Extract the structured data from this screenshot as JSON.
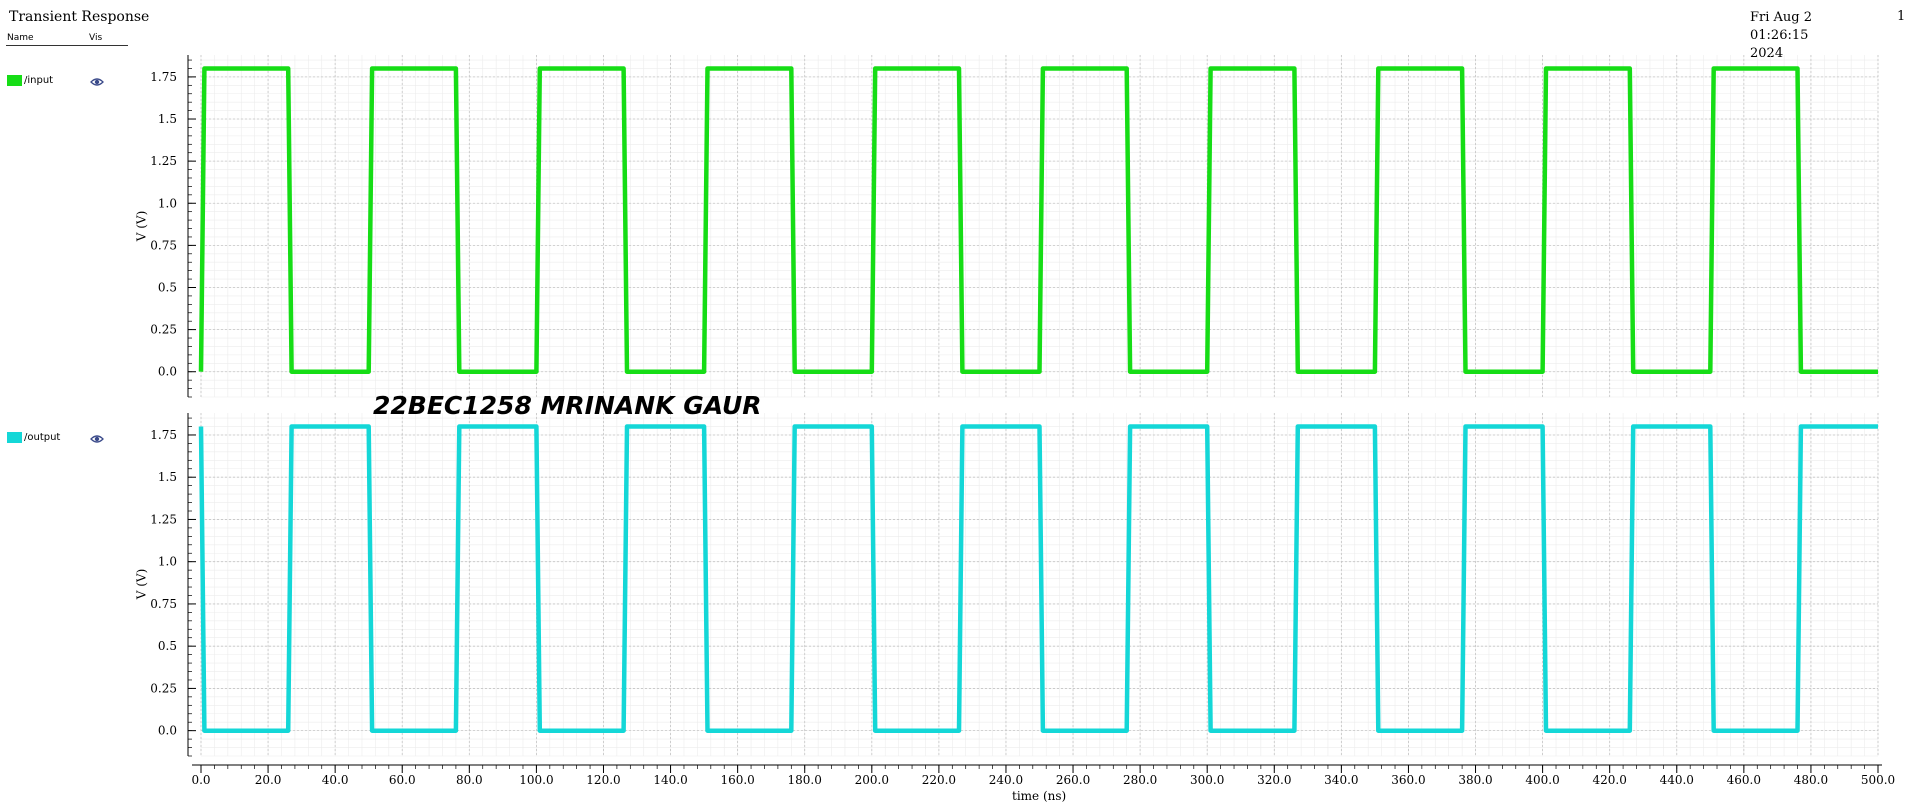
{
  "window": {
    "title": "Transient Response",
    "date_line1": "Fri Aug 2 01:26:15",
    "date_line2": "2024",
    "page_number": "1"
  },
  "legend": {
    "name_header": "Name",
    "vis_header": "Vis"
  },
  "watermark": "22BEC1258 MRINANK GAUR",
  "colors": {
    "input": "#16dd16",
    "output": "#14d7d7"
  },
  "chart_data": {
    "type": "line",
    "xlabel": "time (ns)",
    "xlim": [
      0,
      500
    ],
    "x_ticks": [
      "0.0",
      "20.0",
      "40.0",
      "60.0",
      "80.0",
      "100.0",
      "120.0",
      "140.0",
      "160.0",
      "180.0",
      "200.0",
      "220.0",
      "240.0",
      "260.0",
      "280.0",
      "300.0",
      "320.0",
      "340.0",
      "360.0",
      "380.0",
      "400.0",
      "420.0",
      "440.0",
      "460.0",
      "480.0",
      "500.0"
    ],
    "panels": [
      {
        "name": "/input",
        "ylabel": "V (V)",
        "ylim": [
          -0.15,
          1.88
        ],
        "y_ticks": [
          "0.0",
          "0.25",
          "0.5",
          "0.75",
          "1.0",
          "1.25",
          "1.5",
          "1.75"
        ],
        "series": [
          {
            "name": "/input",
            "color": "#16dd16",
            "x": [
              0,
              1,
              26,
              27,
              50,
              51,
              76,
              77,
              100,
              101,
              126,
              127,
              150,
              151,
              176,
              177,
              200,
              201,
              226,
              227,
              250,
              251,
              276,
              277,
              300,
              301,
              326,
              327,
              350,
              351,
              376,
              377,
              400,
              401,
              426,
              427,
              450,
              451,
              476,
              477,
              500
            ],
            "y": [
              0,
              1.8,
              1.8,
              0,
              0,
              1.8,
              1.8,
              0,
              0,
              1.8,
              1.8,
              0,
              0,
              1.8,
              1.8,
              0,
              0,
              1.8,
              1.8,
              0,
              0,
              1.8,
              1.8,
              0,
              0,
              1.8,
              1.8,
              0,
              0,
              1.8,
              1.8,
              0,
              0,
              1.8,
              1.8,
              0,
              0,
              1.8,
              1.8,
              0,
              0
            ]
          }
        ]
      },
      {
        "name": "/output",
        "ylabel": "V (V)",
        "ylim": [
          -0.15,
          1.88
        ],
        "y_ticks": [
          "0.0",
          "0.25",
          "0.5",
          "0.75",
          "1.0",
          "1.25",
          "1.5",
          "1.75"
        ],
        "series": [
          {
            "name": "/output",
            "color": "#14d7d7",
            "x": [
              0,
              1,
              26,
              27,
              50,
              51,
              76,
              77,
              100,
              101,
              126,
              127,
              150,
              151,
              176,
              177,
              200,
              201,
              226,
              227,
              250,
              251,
              276,
              277,
              300,
              301,
              326,
              327,
              350,
              351,
              376,
              377,
              400,
              401,
              426,
              427,
              450,
              451,
              476,
              477,
              500
            ],
            "y": [
              1.8,
              0,
              0,
              1.8,
              1.8,
              0,
              0,
              1.8,
              1.8,
              0,
              0,
              1.8,
              1.8,
              0,
              0,
              1.8,
              1.8,
              0,
              0,
              1.8,
              1.8,
              0,
              0,
              1.8,
              1.8,
              0,
              0,
              1.8,
              1.8,
              0,
              0,
              1.8,
              1.8,
              0,
              0,
              1.8,
              1.8,
              0,
              0,
              1.8,
              1.8
            ]
          }
        ]
      }
    ]
  }
}
